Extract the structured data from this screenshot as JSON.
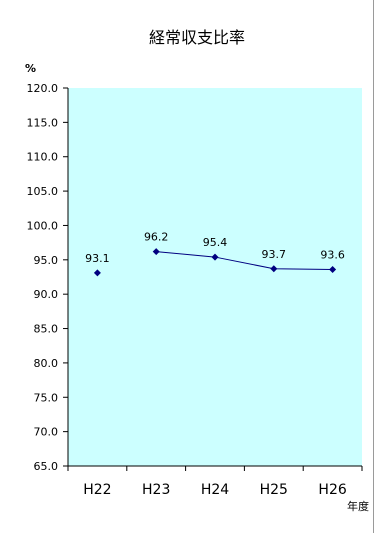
{
  "chart_data": {
    "type": "line",
    "title": "経常収支比率",
    "ylabel": "%",
    "xlabel": "年度",
    "categories": [
      "H22",
      "H23",
      "H24",
      "H25",
      "H26"
    ],
    "series": [
      {
        "values": [
          93.1,
          96.2,
          95.4,
          93.7,
          93.6
        ]
      }
    ],
    "data_labels": [
      "93.1",
      "96.2",
      "95.4",
      "93.7",
      "93.6"
    ],
    "connected_from_index": 1,
    "ylim": [
      65.0,
      120.0
    ],
    "ytick_step": 5.0,
    "ytick_labels": [
      "120.0",
      "115.0",
      "110.0",
      "105.0",
      "100.0",
      "95.0",
      "90.0",
      "85.0",
      "80.0",
      "75.0",
      "70.0",
      "65.0"
    ],
    "grid": false,
    "legend": "none",
    "colors": {
      "plot_bg": "#CCFFFF",
      "line": "#000080",
      "marker": "#000080",
      "axis": "#000000"
    }
  }
}
